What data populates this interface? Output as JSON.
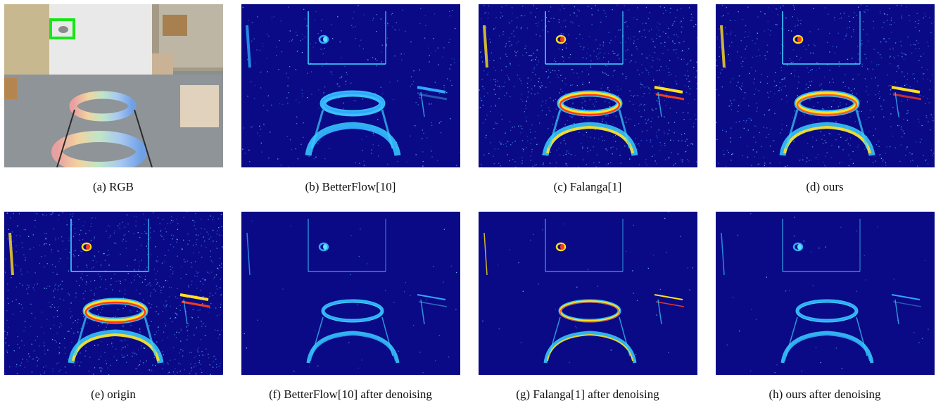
{
  "panels": [
    {
      "caption": "(a) RGB",
      "kind": "rgb"
    },
    {
      "caption": "(b) BetterFlow[10]",
      "kind": "event",
      "intensity": 0.35
    },
    {
      "caption": "(c) Falanga[1]",
      "kind": "event",
      "intensity": 1.0
    },
    {
      "caption": "(d) ours",
      "kind": "event",
      "intensity": 0.75
    },
    {
      "caption": "(e) origin",
      "kind": "event",
      "intensity": 1.0
    },
    {
      "caption": "(f) BetterFlow[10] after denoising",
      "kind": "denoised",
      "intensity": 0.45
    },
    {
      "caption": "(g) Falanga[1] after denoising",
      "kind": "denoised",
      "intensity": 0.9
    },
    {
      "caption": "(h) ours after denoising",
      "kind": "denoised",
      "intensity": 0.35
    }
  ],
  "colors": {
    "event_background": "#0a0a86",
    "highlight_box": "#19e619"
  }
}
